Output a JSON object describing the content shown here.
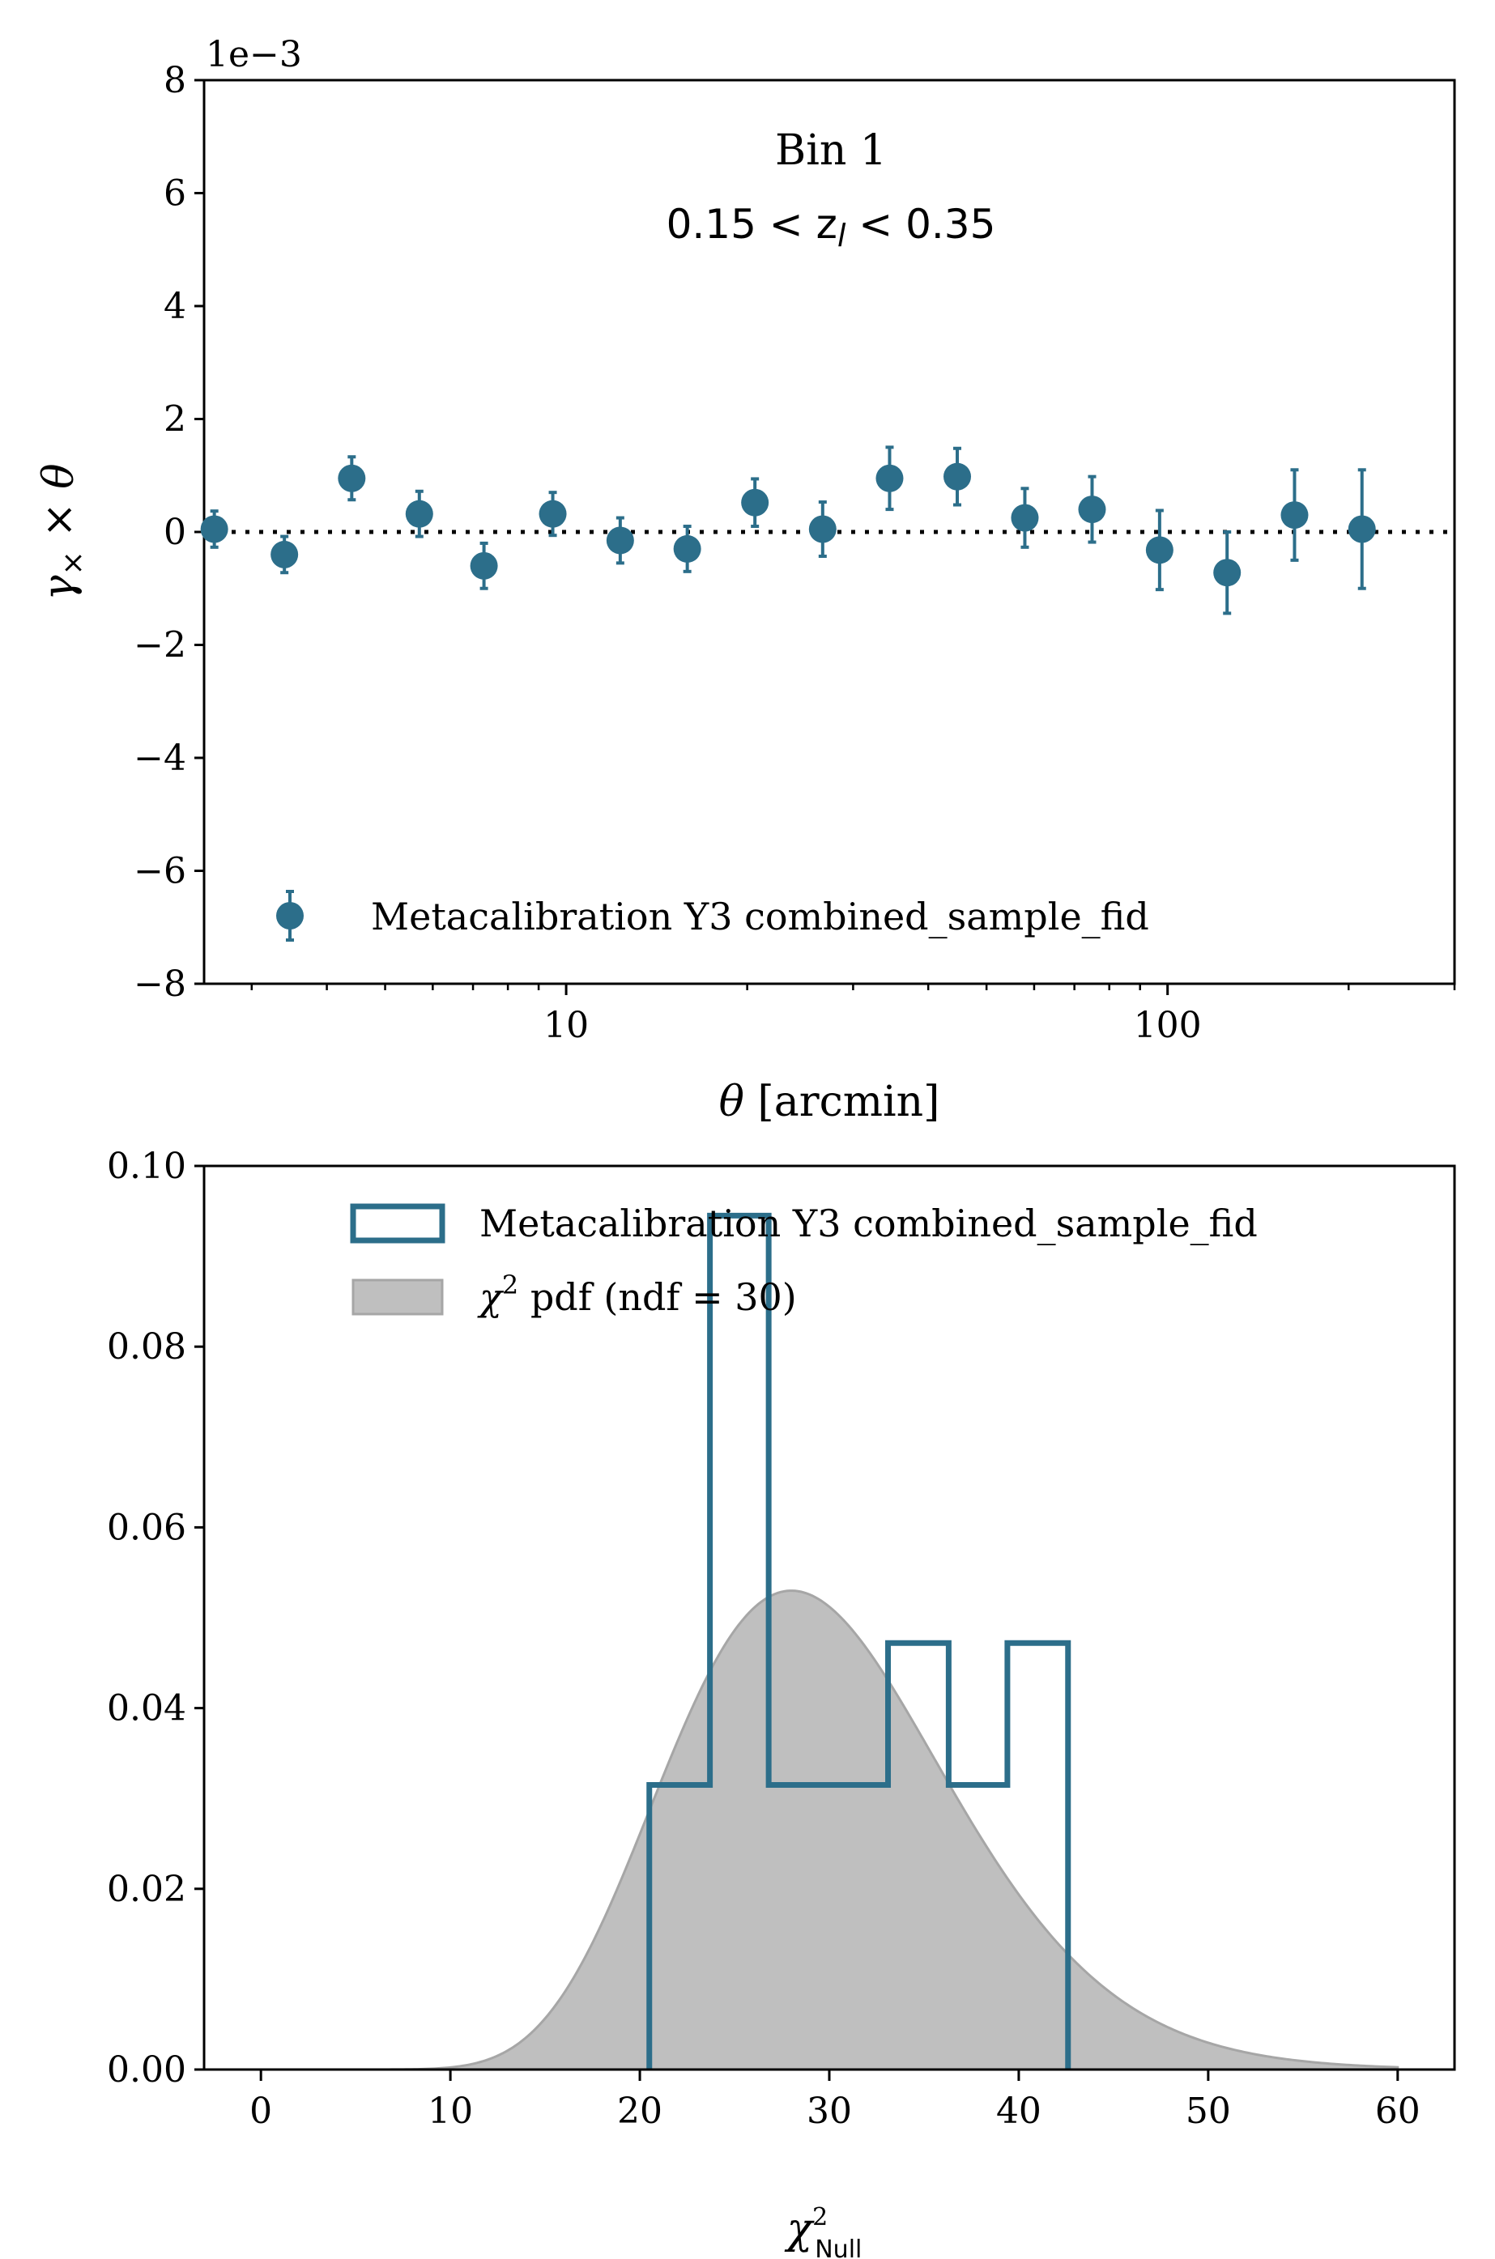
{
  "colors": {
    "series": "#2c6e8a",
    "pdf_fill": "#bfbfbf",
    "pdf_edge": "#a6a6a6",
    "axis": "#000000"
  },
  "chart_data": [
    {
      "type": "scatter",
      "xscale": "log",
      "xlim": [
        2.5,
        300
      ],
      "ylim": [
        -8,
        8
      ],
      "y_multiplier_label": "1e−3",
      "xlabel_symbol": "θ",
      "xlabel_unit": " [arcmin]",
      "ylabel_main": "γ",
      "ylabel_sub": "×",
      "ylabel_rest": " × θ",
      "annotation_line1": "Bin 1",
      "annotation_line2": "0.15 < z",
      "annotation_sub": "l",
      "annotation_line2_end": " < 0.35",
      "xticks": [
        10,
        100
      ],
      "xtick_labels": [
        "10",
        "100"
      ],
      "yticks": [
        8,
        6,
        4,
        2,
        0,
        -2,
        -4,
        -6,
        -8
      ],
      "ytick_labels": [
        "8",
        "6",
        "4",
        "2",
        "0",
        "−2",
        "−4",
        "−6",
        "−8"
      ],
      "reference_line": 0,
      "grid": false,
      "legend_position": "lower-left",
      "series": [
        {
          "name": "Metacalibration Y3 combined_sample_fid",
          "x": [
            2.6,
            3.4,
            4.4,
            5.7,
            7.3,
            9.5,
            12.3,
            15.9,
            20.6,
            26.7,
            34.5,
            44.7,
            57.9,
            74.9,
            97.0,
            125.6,
            162.6,
            210.5
          ],
          "y": [
            0.05,
            -0.4,
            0.95,
            0.32,
            -0.6,
            0.32,
            -0.15,
            -0.3,
            0.52,
            0.05,
            0.95,
            0.98,
            0.25,
            0.4,
            -0.32,
            -0.72,
            0.3,
            0.05
          ],
          "yerr": [
            0.32,
            0.32,
            0.38,
            0.4,
            0.4,
            0.38,
            0.4,
            0.4,
            0.42,
            0.48,
            0.55,
            0.5,
            0.52,
            0.58,
            0.7,
            0.72,
            0.8,
            1.05
          ]
        }
      ]
    },
    {
      "type": "histogram",
      "xlim": [
        -3,
        63
      ],
      "ylim": [
        0,
        0.1
      ],
      "xlabel_main": "χ",
      "xlabel_sup": "2",
      "xlabel_sub": "Null",
      "xticks": [
        0,
        10,
        20,
        30,
        40,
        50,
        60
      ],
      "xtick_labels": [
        "0",
        "10",
        "20",
        "30",
        "40",
        "50",
        "60"
      ],
      "yticks": [
        0.0,
        0.02,
        0.04,
        0.06,
        0.08,
        0.1
      ],
      "ytick_labels": [
        "0.00",
        "0.02",
        "0.04",
        "0.06",
        "0.08",
        "0.10"
      ],
      "grid": false,
      "legend_position": "top-right",
      "histogram": {
        "name": "Metacalibration Y3 combined_sample_fid",
        "bin_edges": [
          20.5,
          23.7,
          26.8,
          30.0,
          33.1,
          36.3,
          39.4,
          42.6
        ],
        "values": [
          0.0315,
          0.0945,
          0.0315,
          0.0315,
          0.0472,
          0.0315,
          0.0472
        ]
      },
      "pdf": {
        "name_main": "χ",
        "name_sup": "2",
        "name_rest": " pdf (ndf = 30)",
        "ndf": 30,
        "x_range": [
          0,
          60
        ]
      }
    }
  ]
}
